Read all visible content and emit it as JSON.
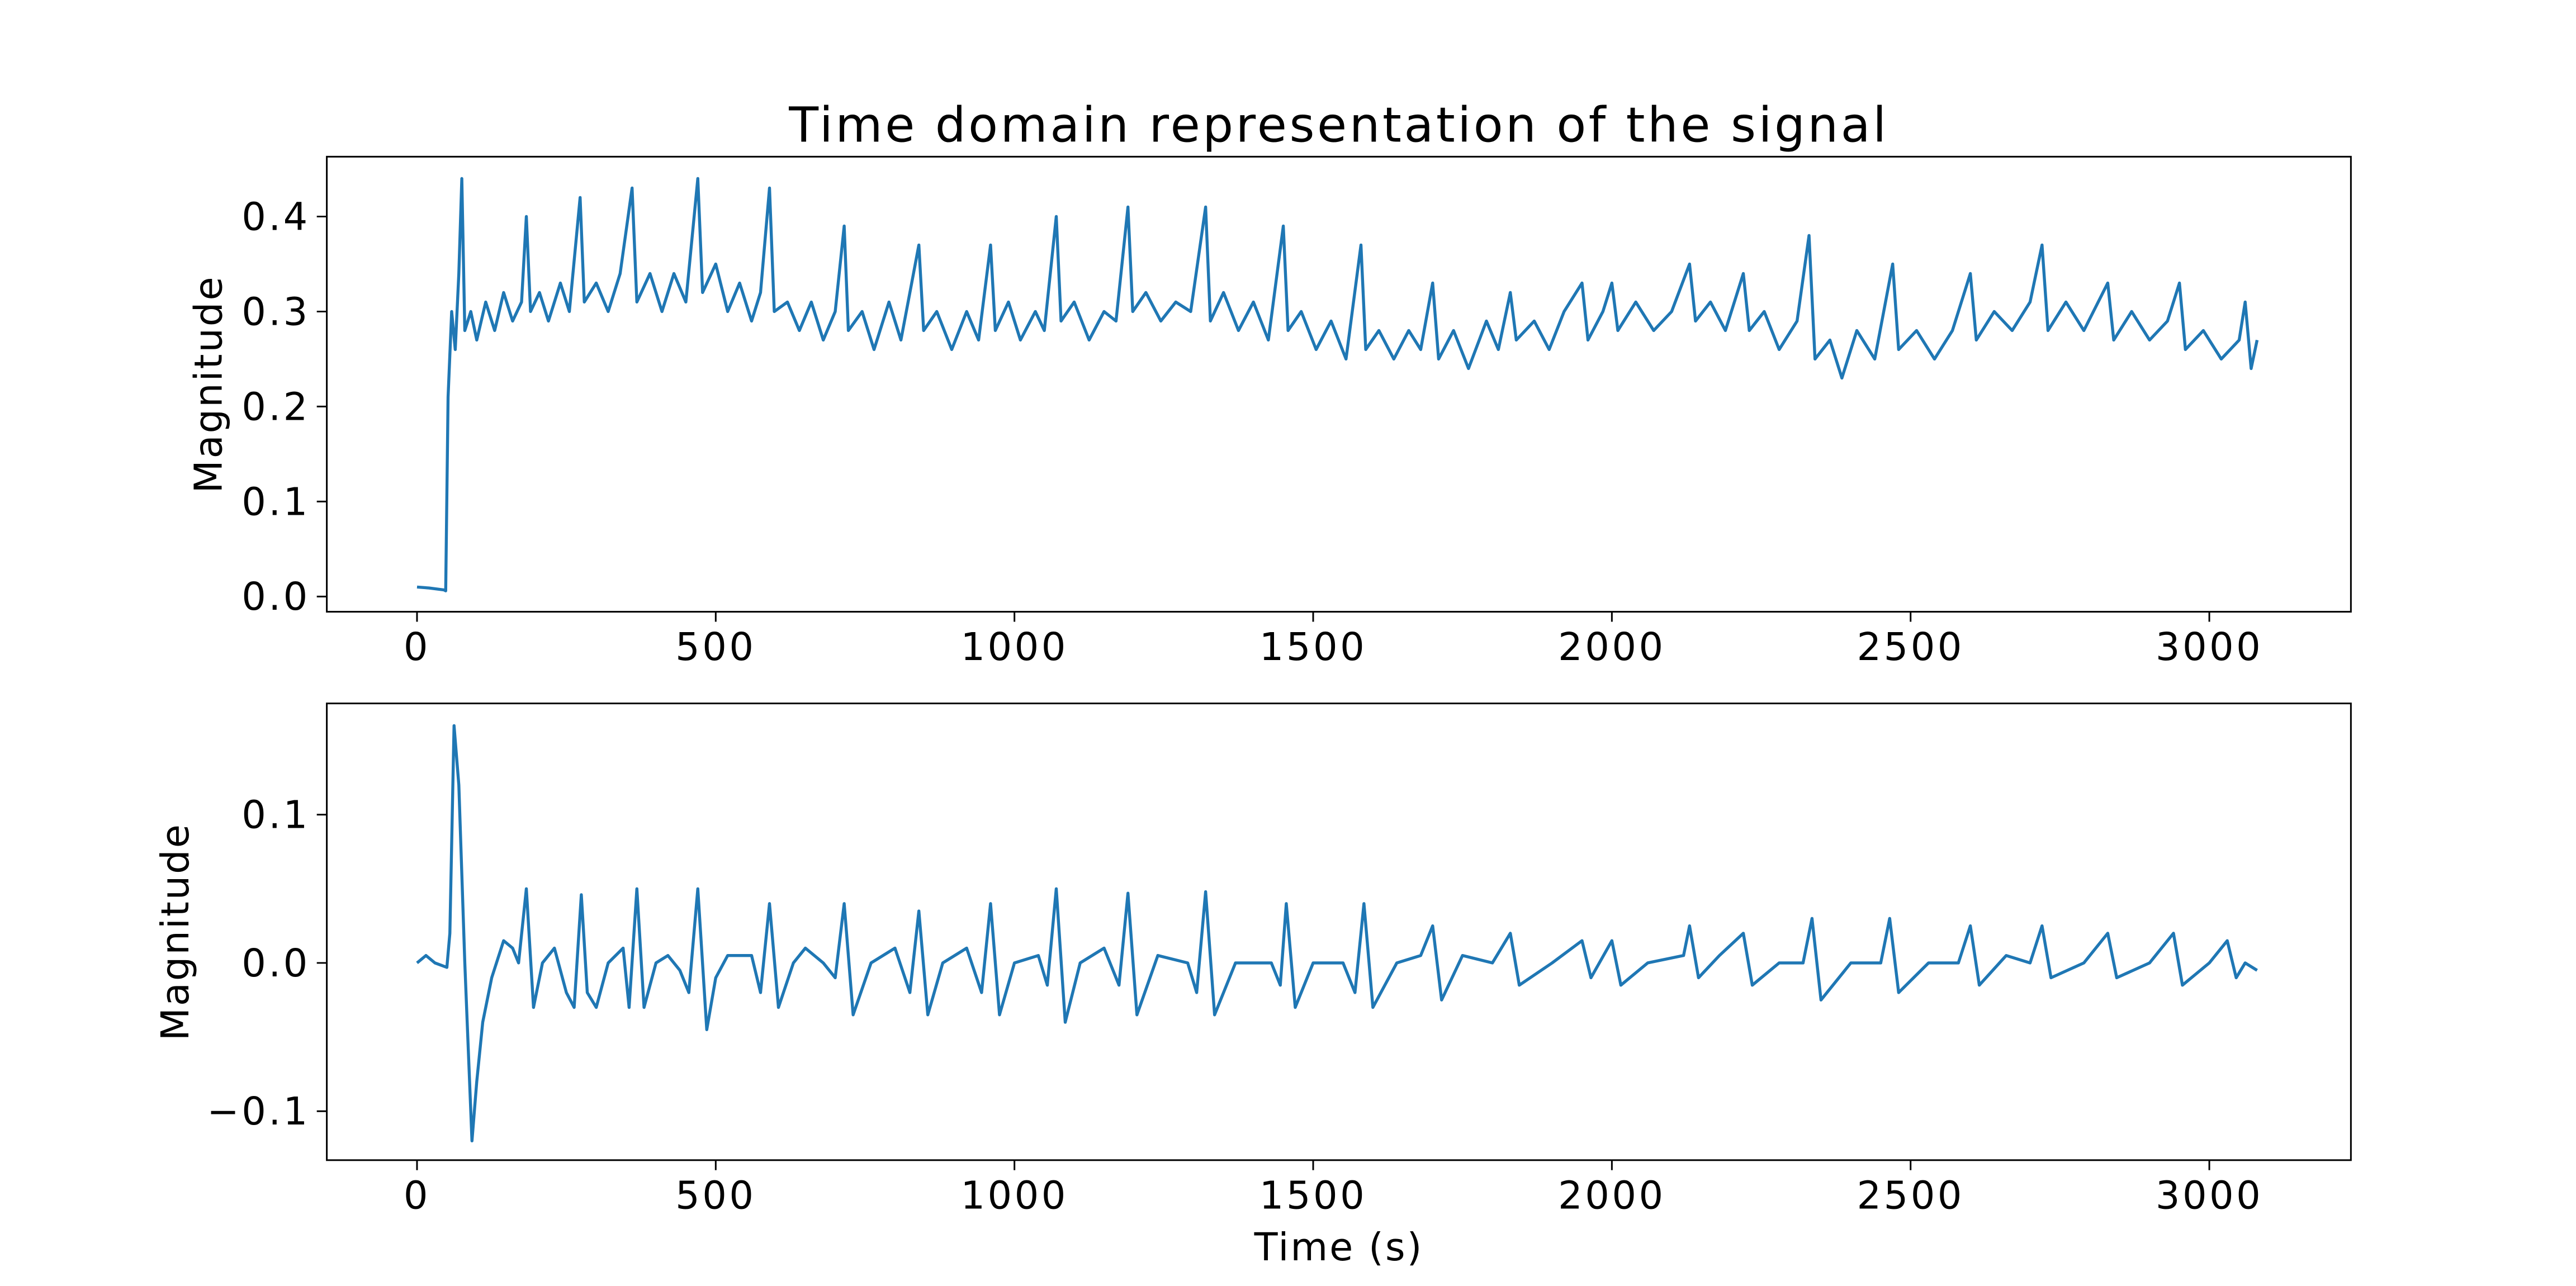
{
  "chart_data": [
    {
      "type": "line",
      "title": "Time domain representation of the signal",
      "ylabel": "Magnitude",
      "x": [
        0,
        20,
        45,
        48,
        52,
        58,
        64,
        70,
        75,
        80,
        90,
        100,
        115,
        130,
        145,
        160,
        175,
        183,
        190,
        205,
        220,
        240,
        255,
        273,
        280,
        300,
        320,
        340,
        360,
        368,
        390,
        410,
        430,
        450,
        470,
        478,
        500,
        520,
        540,
        560,
        575,
        590,
        598,
        620,
        640,
        660,
        680,
        700,
        715,
        722,
        745,
        765,
        790,
        810,
        840,
        848,
        870,
        895,
        920,
        940,
        960,
        968,
        990,
        1010,
        1035,
        1050,
        1070,
        1078,
        1100,
        1125,
        1150,
        1170,
        1190,
        1198,
        1220,
        1245,
        1270,
        1295,
        1320,
        1328,
        1350,
        1375,
        1400,
        1425,
        1450,
        1458,
        1480,
        1505,
        1530,
        1555,
        1580,
        1588,
        1610,
        1635,
        1660,
        1680,
        1700,
        1710,
        1735,
        1760,
        1790,
        1810,
        1830,
        1840,
        1870,
        1895,
        1920,
        1950,
        1960,
        1985,
        2000,
        2010,
        2040,
        2070,
        2100,
        2130,
        2140,
        2165,
        2190,
        2220,
        2230,
        2255,
        2280,
        2310,
        2330,
        2340,
        2365,
        2385,
        2410,
        2440,
        2470,
        2480,
        2510,
        2540,
        2570,
        2600,
        2610,
        2640,
        2670,
        2700,
        2720,
        2730,
        2760,
        2790,
        2830,
        2840,
        2870,
        2900,
        2930,
        2950,
        2960,
        2990,
        3020,
        3050,
        3060,
        3070,
        3080
      ],
      "series": [
        {
          "color": "#1f77b4",
          "values": [
            0.01,
            0.009,
            0.007,
            0.006,
            0.21,
            0.3,
            0.26,
            0.34,
            0.44,
            0.28,
            0.3,
            0.27,
            0.31,
            0.28,
            0.32,
            0.29,
            0.31,
            0.4,
            0.3,
            0.32,
            0.29,
            0.33,
            0.3,
            0.42,
            0.31,
            0.33,
            0.3,
            0.34,
            0.43,
            0.31,
            0.34,
            0.3,
            0.34,
            0.31,
            0.44,
            0.32,
            0.35,
            0.3,
            0.33,
            0.29,
            0.32,
            0.43,
            0.3,
            0.31,
            0.28,
            0.31,
            0.27,
            0.3,
            0.39,
            0.28,
            0.3,
            0.26,
            0.31,
            0.27,
            0.37,
            0.28,
            0.3,
            0.26,
            0.3,
            0.27,
            0.37,
            0.28,
            0.31,
            0.27,
            0.3,
            0.28,
            0.4,
            0.29,
            0.31,
            0.27,
            0.3,
            0.29,
            0.41,
            0.3,
            0.32,
            0.29,
            0.31,
            0.3,
            0.41,
            0.29,
            0.32,
            0.28,
            0.31,
            0.27,
            0.39,
            0.28,
            0.3,
            0.26,
            0.29,
            0.25,
            0.37,
            0.26,
            0.28,
            0.25,
            0.28,
            0.26,
            0.33,
            0.25,
            0.28,
            0.24,
            0.29,
            0.26,
            0.32,
            0.27,
            0.29,
            0.26,
            0.3,
            0.33,
            0.27,
            0.3,
            0.33,
            0.28,
            0.31,
            0.28,
            0.3,
            0.35,
            0.29,
            0.31,
            0.28,
            0.34,
            0.28,
            0.3,
            0.26,
            0.29,
            0.38,
            0.25,
            0.27,
            0.23,
            0.28,
            0.25,
            0.35,
            0.26,
            0.28,
            0.25,
            0.28,
            0.34,
            0.27,
            0.3,
            0.28,
            0.31,
            0.37,
            0.28,
            0.31,
            0.28,
            0.33,
            0.27,
            0.3,
            0.27,
            0.29,
            0.33,
            0.26,
            0.28,
            0.25,
            0.27,
            0.31,
            0.24,
            0.27
          ]
        }
      ],
      "xlim": [
        -151,
        3237
      ],
      "ylim": [
        -0.016,
        0.463
      ],
      "xticks": [
        0,
        500,
        1000,
        1500,
        2000,
        2500,
        3000
      ],
      "yticks": [
        {
          "value": 0,
          "label": "0.0"
        },
        0.1,
        0.2,
        0.3,
        0.4
      ]
    },
    {
      "type": "line",
      "ylabel": "Magnitude",
      "xlabel": "Time (s)",
      "x": [
        0,
        15,
        30,
        50,
        55,
        62,
        70,
        80,
        92,
        100,
        110,
        125,
        145,
        160,
        170,
        183,
        195,
        210,
        230,
        250,
        263,
        275,
        285,
        300,
        320,
        345,
        355,
        368,
        380,
        400,
        420,
        440,
        455,
        470,
        485,
        500,
        520,
        560,
        575,
        590,
        605,
        630,
        650,
        680,
        700,
        715,
        730,
        760,
        800,
        825,
        840,
        855,
        880,
        920,
        945,
        960,
        975,
        1000,
        1040,
        1055,
        1070,
        1085,
        1110,
        1150,
        1175,
        1190,
        1205,
        1240,
        1290,
        1305,
        1320,
        1335,
        1370,
        1430,
        1445,
        1455,
        1470,
        1500,
        1550,
        1570,
        1585,
        1600,
        1640,
        1680,
        1700,
        1715,
        1750,
        1800,
        1830,
        1845,
        1900,
        1950,
        1965,
        2000,
        2015,
        2060,
        2120,
        2130,
        2145,
        2180,
        2220,
        2235,
        2280,
        2320,
        2335,
        2350,
        2400,
        2450,
        2465,
        2480,
        2530,
        2580,
        2600,
        2615,
        2660,
        2700,
        2720,
        2735,
        2790,
        2830,
        2845,
        2900,
        2940,
        2955,
        3000,
        3030,
        3045,
        3060,
        3080
      ],
      "series": [
        {
          "color": "#1f77b4",
          "values": [
            0,
            0.005,
            0,
            -0.003,
            0.02,
            0.16,
            0.12,
            0,
            -0.12,
            -0.08,
            -0.04,
            -0.01,
            0.015,
            0.01,
            0,
            0.05,
            -0.03,
            0,
            0.01,
            -0.02,
            -0.03,
            0.046,
            -0.02,
            -0.03,
            0,
            0.01,
            -0.03,
            0.05,
            -0.03,
            0,
            0.005,
            -0.005,
            -0.02,
            0.05,
            -0.045,
            -0.01,
            0.005,
            0.005,
            -0.02,
            0.04,
            -0.03,
            0,
            0.01,
            0,
            -0.01,
            0.04,
            -0.035,
            0,
            0.01,
            -0.02,
            0.035,
            -0.035,
            0,
            0.01,
            -0.02,
            0.04,
            -0.035,
            0,
            0.005,
            -0.015,
            0.05,
            -0.04,
            0,
            0.01,
            -0.015,
            0.047,
            -0.035,
            0.005,
            0,
            -0.02,
            0.048,
            -0.035,
            0,
            0,
            -0.015,
            0.04,
            -0.03,
            0,
            0,
            -0.02,
            0.04,
            -0.03,
            0,
            0.005,
            0.025,
            -0.025,
            0.005,
            0,
            0.02,
            -0.015,
            0,
            0.015,
            -0.01,
            0.015,
            -0.015,
            0,
            0.005,
            0.025,
            -0.01,
            0.005,
            0.02,
            -0.015,
            0,
            0,
            0.03,
            -0.025,
            0,
            0,
            0.03,
            -0.02,
            0,
            0,
            0.025,
            -0.015,
            0.005,
            0,
            0.025,
            -0.01,
            0,
            0.02,
            -0.01,
            0,
            0.02,
            -0.015,
            0,
            0.015,
            -0.01,
            0,
            -0.005
          ]
        }
      ],
      "xlim": [
        -151,
        3237
      ],
      "ylim": [
        -0.133,
        0.175
      ],
      "xticks": [
        0,
        500,
        1000,
        1500,
        2000,
        2500,
        3000
      ],
      "yticks": [
        {
          "value": -0.1,
          "label": "−0.1"
        },
        {
          "value": 0,
          "label": "0.0"
        },
        0.1
      ]
    }
  ]
}
